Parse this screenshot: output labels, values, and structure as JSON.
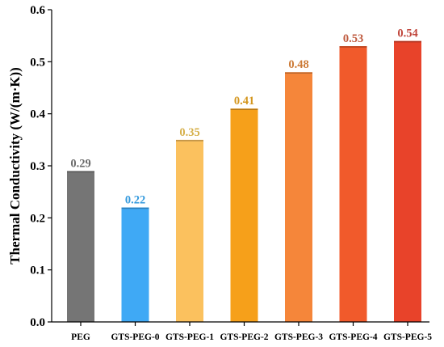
{
  "chart_data": {
    "type": "bar",
    "title": "",
    "xlabel": "",
    "ylabel": "Thermal Conductivity  (W/(m·K))",
    "ylim": [
      0,
      0.6
    ],
    "yticks": [
      "0.0",
      "0.1",
      "0.2",
      "0.3",
      "0.4",
      "0.5",
      "0.6"
    ],
    "grid": false,
    "legend": "none",
    "categories": [
      "PEG",
      "GTS-PEG-0",
      "GTS-PEG-1",
      "GTS-PEG-2",
      "GTS-PEG-3",
      "GTS-PEG-4",
      "GTS-PEG-5"
    ],
    "values": [
      0.29,
      0.22,
      0.35,
      0.41,
      0.48,
      0.53,
      0.54
    ],
    "value_labels": [
      "0.29",
      "0.22",
      "0.35",
      "0.41",
      "0.48",
      "0.53",
      "0.54"
    ],
    "bar_colors": [
      "#757575",
      "#3fa9f5",
      "#fbc15e",
      "#f6a01a",
      "#f5863a",
      "#f15a2b",
      "#e8432a"
    ],
    "label_colors": [
      "#6b6b6b",
      "#3399dd",
      "#d6b04a",
      "#d4961e",
      "#cc7a36",
      "#bf5a3e",
      "#c0463c"
    ]
  }
}
